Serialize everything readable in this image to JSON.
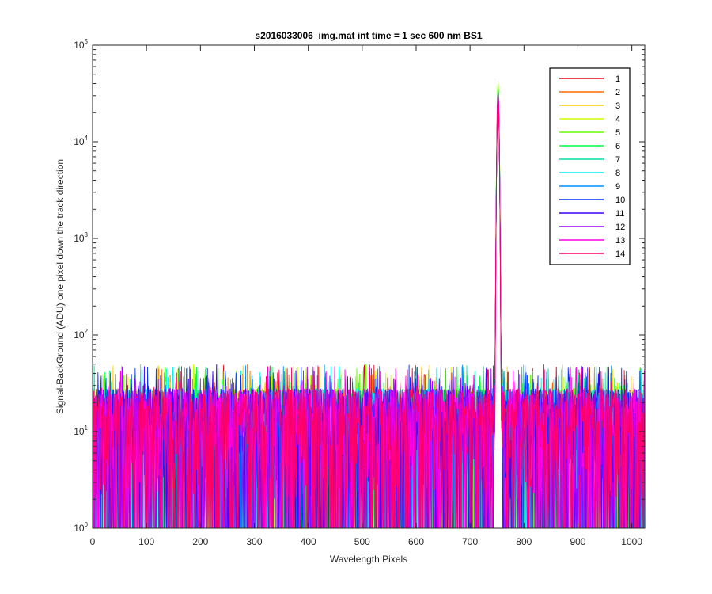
{
  "chart_data": {
    "type": "line",
    "title": "s2016033006_img.mat int time = 1 sec  600 nm BS1",
    "xlabel": "Wavelength Pixels",
    "ylabel": "Signal-BackGround (ADU) one pixel down the track direction",
    "xlim": [
      0,
      1024
    ],
    "ylim": [
      1,
      100000
    ],
    "yscale": "log",
    "xticks": [
      0,
      100,
      200,
      300,
      400,
      500,
      600,
      700,
      800,
      900,
      1000
    ],
    "xtick_labels": [
      "0",
      "100",
      "200",
      "300",
      "400",
      "500",
      "600",
      "700",
      "800",
      "900",
      "1000"
    ],
    "yticks": [
      1,
      10,
      100,
      1000,
      10000,
      100000
    ],
    "ytick_base": "10",
    "ytick_exponents": [
      "0",
      "1",
      "2",
      "3",
      "4",
      "5"
    ],
    "grid": false,
    "legend_position": "top-right",
    "noise_floor": {
      "typical_range": [
        1,
        30
      ],
      "max_spikes": 50
    },
    "peak": {
      "x_center": 752,
      "x_range": [
        745,
        760
      ]
    },
    "series": [
      {
        "name": "1",
        "color": "#e6001a",
        "peak": 30000
      },
      {
        "name": "2",
        "color": "#ff6a00",
        "peak": 32000
      },
      {
        "name": "3",
        "color": "#ffd000",
        "peak": 38000
      },
      {
        "name": "4",
        "color": "#c8ff00",
        "peak": 42000
      },
      {
        "name": "5",
        "color": "#66ff00",
        "peak": 40000
      },
      {
        "name": "6",
        "color": "#00ff44",
        "peak": 36000
      },
      {
        "name": "7",
        "color": "#00e0a0",
        "peak": 34000
      },
      {
        "name": "8",
        "color": "#00f0f0",
        "peak": 33000
      },
      {
        "name": "9",
        "color": "#0090ff",
        "peak": 31000
      },
      {
        "name": "10",
        "color": "#0030ff",
        "peak": 30000
      },
      {
        "name": "11",
        "color": "#4000ff",
        "peak": 32000
      },
      {
        "name": "12",
        "color": "#a000ff",
        "peak": 33000
      },
      {
        "name": "13",
        "color": "#ff00e0",
        "peak": 31000
      },
      {
        "name": "14",
        "color": "#ff0066",
        "peak": 29000
      }
    ]
  }
}
